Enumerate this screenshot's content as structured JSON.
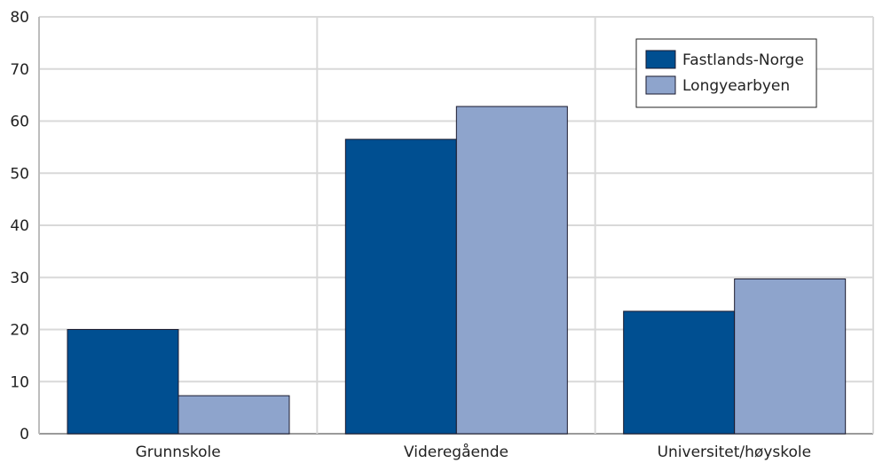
{
  "chart_data": {
    "type": "bar",
    "categories": [
      "Grunnskole",
      "Videregående",
      "Universitet/høyskole"
    ],
    "series": [
      {
        "name": "Fastlands-Norge",
        "color": "#004f91",
        "values": [
          20,
          56.5,
          23.5
        ]
      },
      {
        "name": "Longyearbyen",
        "color": "#8ea4cc",
        "values": [
          7.3,
          62.8,
          29.7
        ]
      }
    ],
    "yticks": [
      0,
      10,
      20,
      30,
      40,
      50,
      60,
      70,
      80
    ],
    "ylim": [
      0,
      80
    ],
    "grid": true,
    "legend_position": "top-right",
    "title": "",
    "xlabel": "",
    "ylabel": ""
  }
}
